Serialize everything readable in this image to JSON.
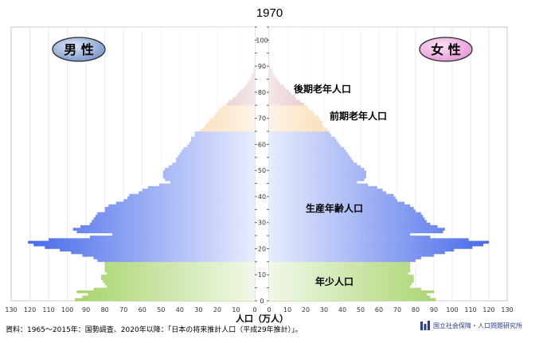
{
  "title": "1970",
  "source_note": "資料：1965～2015年：国勢調査、2020年以降：「日本の将来推計人口（平成29年推計）」。",
  "organization": "国立社会保障・人口問題研究所",
  "colors": {
    "elderly_late": "#a8393c",
    "elderly_early": "#f0a030",
    "working": "#3a5fe8",
    "youth": "#8cc63f",
    "male_badge": "#6f8fc6",
    "female_badge": "#e58ed4"
  },
  "chart_data": {
    "type": "population-pyramid",
    "title": "1970",
    "xlabel": "人口（万人）",
    "age_axis": {
      "min": 0,
      "max": 105,
      "ticks": [
        0,
        10,
        20,
        30,
        40,
        50,
        60,
        70,
        80,
        90,
        100
      ]
    },
    "x_ticks_male": [
      "130",
      "120",
      "110",
      "100",
      "90",
      "80",
      "70",
      "60",
      "50",
      "40",
      "30",
      "20",
      "10",
      "0"
    ],
    "x_ticks_female": [
      "0",
      "10",
      "20",
      "30",
      "40",
      "50",
      "60",
      "70",
      "80",
      "90",
      "100",
      "110",
      "120",
      "130"
    ],
    "xlim": [
      0,
      130
    ],
    "legend": {
      "male": "男 性",
      "female": "女 性"
    },
    "groups": [
      {
        "name": "後期老年人口",
        "ages": "75+"
      },
      {
        "name": "前期老年人口",
        "ages": "65-74"
      },
      {
        "name": "生産年齢人口",
        "ages": "15-64"
      },
      {
        "name": "年少人口",
        "ages": "0-14"
      }
    ],
    "male": [
      96,
      92,
      89,
      95,
      86,
      79,
      80,
      81,
      82,
      82,
      79,
      80,
      80,
      80,
      80,
      84,
      86,
      92,
      98,
      104,
      112,
      118,
      121,
      110,
      88,
      76,
      95,
      97,
      93,
      88,
      87,
      86,
      85,
      84,
      80,
      80,
      78,
      74,
      70,
      68,
      67,
      62,
      60,
      57,
      51,
      45,
      48,
      49,
      49,
      49,
      48,
      46,
      44,
      42,
      42,
      41,
      40,
      39,
      38,
      36,
      35,
      34,
      34,
      32,
      32,
      29,
      27,
      26,
      25,
      24,
      22,
      21,
      20,
      19,
      17,
      15,
      14,
      12,
      10,
      9,
      8,
      6,
      5,
      4,
      3,
      2,
      2,
      1,
      1,
      0.5,
      0.3,
      0.2,
      0.1,
      0,
      0,
      0,
      0,
      0,
      0,
      0,
      0,
      0,
      0,
      0,
      0,
      0
    ],
    "female": [
      91,
      88,
      86,
      90,
      83,
      77,
      78,
      79,
      79,
      79,
      76,
      77,
      77,
      77,
      77,
      80,
      83,
      90,
      96,
      101,
      111,
      117,
      120,
      109,
      88,
      77,
      95,
      96,
      92,
      88,
      86,
      85,
      84,
      83,
      80,
      79,
      77,
      74,
      70,
      69,
      68,
      64,
      62,
      59,
      54,
      48,
      52,
      53,
      53,
      53,
      52,
      50,
      48,
      46,
      45,
      44,
      43,
      42,
      41,
      39,
      38,
      37,
      36,
      34,
      33,
      32,
      30,
      29,
      29,
      28,
      27,
      25,
      24,
      22,
      21,
      19,
      17,
      15,
      14,
      12,
      11,
      9,
      8,
      6,
      5,
      4,
      3,
      2,
      2,
      1,
      0.6,
      0.4,
      0.2,
      0.1,
      0,
      0,
      0,
      0,
      0,
      0,
      0,
      0,
      0,
      0,
      0,
      0
    ]
  }
}
